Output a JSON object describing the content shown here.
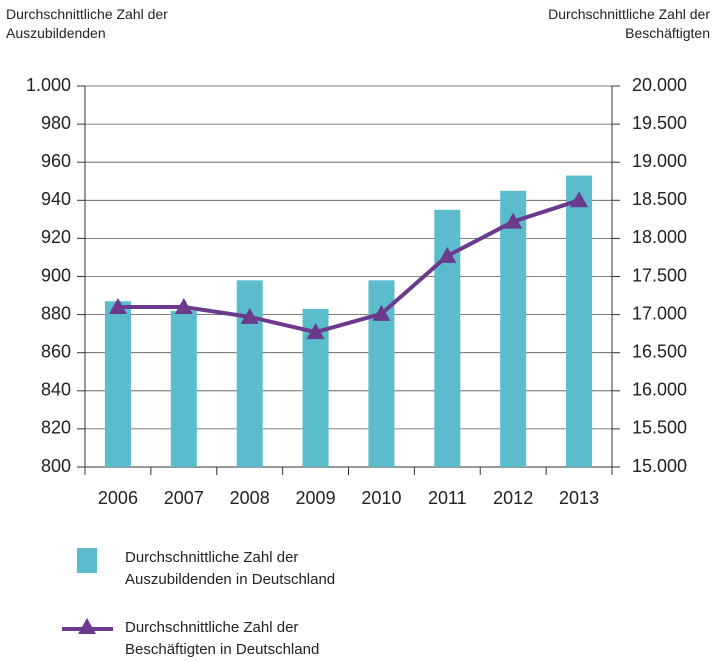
{
  "chart_data": {
    "type": "bar-line",
    "y_label": "Durchschnittliche Zahl der Auszubildenden",
    "y2_label": "Durchschnittliche Zahl der Beschäftigten",
    "categories": [
      "2006",
      "2007",
      "2008",
      "2009",
      "2010",
      "2011",
      "2012",
      "2013"
    ],
    "series": [
      {
        "name": "Durchschnittliche Zahl der Auszubildenden in Deutschland",
        "type": "bar",
        "color": "#5bbccc",
        "values": [
          887,
          882,
          898,
          883,
          898,
          935,
          945,
          953
        ]
      },
      {
        "name": "Durchschnittliche Zahl der Beschäftigten in Deutschland",
        "type": "line",
        "color": "#6b3a8c",
        "axis": "y2",
        "marker": "triangle",
        "values": [
          17100,
          17100,
          16970,
          16770,
          17010,
          17770,
          18220,
          18500
        ]
      }
    ],
    "ylim": [
      800,
      1000
    ],
    "yticks": [
      800,
      820,
      840,
      860,
      880,
      900,
      920,
      940,
      960,
      980,
      {
        "value": 1000,
        "label": "1.000"
      }
    ],
    "y2lim": [
      15000,
      20000
    ],
    "y2ticks": [
      {
        "value": 15000,
        "label": "15.000"
      },
      {
        "value": 15500,
        "label": "15.500"
      },
      {
        "value": 16000,
        "label": "16.000"
      },
      {
        "value": 16500,
        "label": "16.500"
      },
      {
        "value": 17000,
        "label": "17.000"
      },
      {
        "value": 17500,
        "label": "17.500"
      },
      {
        "value": 18000,
        "label": "18.000"
      },
      {
        "value": 18500,
        "label": "18.500"
      },
      {
        "value": 19000,
        "label": "19.000"
      },
      {
        "value": 19500,
        "label": "19.500"
      },
      {
        "value": 20000,
        "label": "20.000"
      }
    ],
    "grid": true
  }
}
